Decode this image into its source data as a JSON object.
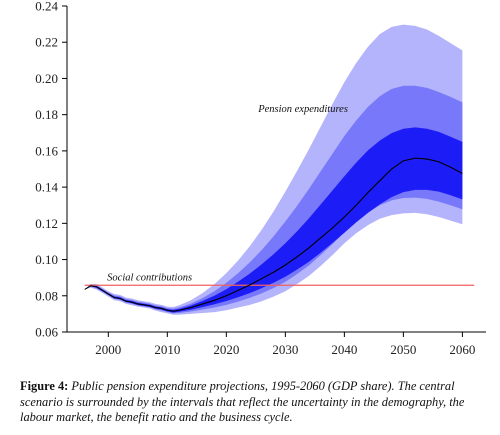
{
  "chart_data": {
    "type": "area",
    "title": "",
    "xlabel": "",
    "ylabel": "",
    "xlim": [
      1993,
      2064
    ],
    "ylim": [
      0.06,
      0.24
    ],
    "x_ticks": [
      2000,
      2010,
      2020,
      2030,
      2040,
      2050,
      2060
    ],
    "y_ticks": [
      0.06,
      0.08,
      0.1,
      0.12,
      0.14,
      0.16,
      0.18,
      0.2,
      0.22,
      0.24
    ],
    "x_tick_labels": [
      "2000",
      "2010",
      "2020",
      "2030",
      "2040",
      "2050",
      "2060"
    ],
    "y_tick_labels": [
      "0.06",
      "0.08",
      "0.10",
      "0.12",
      "0.14",
      "0.16",
      "0.18",
      "0.20",
      "0.22",
      "0.24"
    ],
    "grid": false,
    "colors": {
      "band_outer": "#b4b4fc",
      "band_middle": "#7878fa",
      "band_inner": "#1c1cf6",
      "central_line": "#000000",
      "contributions_line": "#f06060",
      "axis": "#000000"
    },
    "series": [
      {
        "name": "Pension expenditures",
        "x": [
          1996,
          1997,
          1998,
          1999,
          2000,
          2001,
          2002,
          2003,
          2004,
          2005,
          2006,
          2007,
          2008,
          2009,
          2010,
          2011,
          2012,
          2014,
          2016,
          2018,
          2020,
          2022,
          2024,
          2026,
          2028,
          2030,
          2032,
          2034,
          2036,
          2038,
          2040,
          2042,
          2044,
          2046,
          2048,
          2050,
          2052,
          2054,
          2056,
          2058,
          2060
        ],
        "values": [
          0.0835,
          0.0855,
          0.085,
          0.083,
          0.081,
          0.079,
          0.0785,
          0.077,
          0.0765,
          0.0755,
          0.075,
          0.0745,
          0.0735,
          0.073,
          0.072,
          0.0715,
          0.072,
          0.0735,
          0.0755,
          0.0775,
          0.08,
          0.083,
          0.086,
          0.0895,
          0.093,
          0.097,
          0.1015,
          0.1065,
          0.112,
          0.1175,
          0.1235,
          0.13,
          0.137,
          0.1435,
          0.15,
          0.1545,
          0.156,
          0.1555,
          0.154,
          0.151,
          0.1475
        ],
        "bands": [
          {
            "name": "outer",
            "upper": [
              0.0835,
              0.0865,
              0.0865,
              0.0845,
              0.0825,
              0.081,
              0.0805,
              0.079,
              0.0785,
              0.0775,
              0.077,
              0.0765,
              0.0755,
              0.075,
              0.074,
              0.0738,
              0.0748,
              0.0775,
              0.0815,
              0.0865,
              0.0925,
              0.0995,
              0.1075,
              0.1165,
              0.1265,
              0.1375,
              0.149,
              0.161,
              0.1735,
              0.186,
              0.198,
              0.2085,
              0.2175,
              0.2245,
              0.2285,
              0.2297,
              0.229,
              0.227,
              0.2235,
              0.2195,
              0.2155
            ],
            "lower": [
              0.0835,
              0.0845,
              0.0835,
              0.0815,
              0.0795,
              0.0775,
              0.077,
              0.0755,
              0.0748,
              0.074,
              0.0735,
              0.073,
              0.0718,
              0.071,
              0.0703,
              0.0695,
              0.0695,
              0.07,
              0.0705,
              0.071,
              0.072,
              0.0735,
              0.075,
              0.077,
              0.0795,
              0.0825,
              0.0865,
              0.091,
              0.0965,
              0.1025,
              0.109,
              0.1145,
              0.119,
              0.1225,
              0.1245,
              0.1255,
              0.1258,
              0.125,
              0.1235,
              0.1215,
              0.1195
            ]
          },
          {
            "name": "middle",
            "upper": [
              0.0835,
              0.086,
              0.086,
              0.0838,
              0.0818,
              0.0802,
              0.0797,
              0.0782,
              0.0777,
              0.0767,
              0.0762,
              0.0757,
              0.0747,
              0.0742,
              0.0732,
              0.0729,
              0.0736,
              0.0757,
              0.0788,
              0.0826,
              0.0871,
              0.0925,
              0.0985,
              0.1053,
              0.1128,
              0.121,
              0.1297,
              0.139,
              0.1488,
              0.1585,
              0.1682,
              0.1768,
              0.1843,
              0.1902,
              0.1942,
              0.196,
              0.196,
              0.1948,
              0.1925,
              0.1898,
              0.1868
            ],
            "lower": [
              0.0835,
              0.085,
              0.084,
              0.0822,
              0.0802,
              0.0783,
              0.0777,
              0.0762,
              0.0756,
              0.0746,
              0.0741,
              0.0736,
              0.0725,
              0.0718,
              0.071,
              0.0703,
              0.0705,
              0.0713,
              0.0724,
              0.0735,
              0.075,
              0.0768,
              0.0789,
              0.0813,
              0.0843,
              0.0877,
              0.092,
              0.0968,
              0.1025,
              0.1085,
              0.115,
              0.1208,
              0.126,
              0.13,
              0.1327,
              0.134,
              0.1342,
              0.1335,
              0.132,
              0.13,
              0.1278
            ]
          },
          {
            "name": "inner",
            "upper": [
              0.0835,
              0.0857,
              0.0855,
              0.0834,
              0.0814,
              0.0796,
              0.0791,
              0.0776,
              0.0771,
              0.0761,
              0.0756,
              0.0751,
              0.0741,
              0.0736,
              0.0726,
              0.0722,
              0.0728,
              0.0746,
              0.0772,
              0.0801,
              0.0836,
              0.0878,
              0.0923,
              0.0974,
              0.1029,
              0.109,
              0.1156,
              0.1228,
              0.1305,
              0.1382,
              0.146,
              0.1535,
              0.1603,
              0.1657,
              0.1698,
              0.1722,
              0.173,
              0.1722,
              0.1705,
              0.1678,
              0.165
            ],
            "lower": [
              0.0835,
              0.0853,
              0.0845,
              0.0826,
              0.0806,
              0.0786,
              0.0781,
              0.0766,
              0.0759,
              0.0749,
              0.0744,
              0.0739,
              0.0729,
              0.0724,
              0.0714,
              0.0708,
              0.0712,
              0.0723,
              0.0738,
              0.0753,
              0.0771,
              0.0792,
              0.0815,
              0.0842,
              0.0872,
              0.0905,
              0.0945,
              0.0988,
              0.1038,
              0.1092,
              0.1148,
              0.1205,
              0.1258,
              0.1305,
              0.1345,
              0.1372,
              0.1385,
              0.1385,
              0.1375,
              0.1355,
              0.1332
            ]
          }
        ]
      },
      {
        "name": "Social contributions",
        "x": [
          1996,
          2062
        ],
        "values": [
          0.0858,
          0.0858
        ]
      }
    ],
    "annotations": [
      {
        "text": "Pension expenditures",
        "x": 2033,
        "y": 0.1815
      },
      {
        "text": "Social contributions",
        "x": 2007,
        "y": 0.0885
      }
    ]
  },
  "caption": {
    "label": "Figure 4:",
    "text": "Public pension expenditure projections, 1995-2060 (GDP share).  The central scenario is surrounded by the intervals that reflect the uncertainty in the demography, the labour market, the benefit ratio and the business cycle."
  }
}
